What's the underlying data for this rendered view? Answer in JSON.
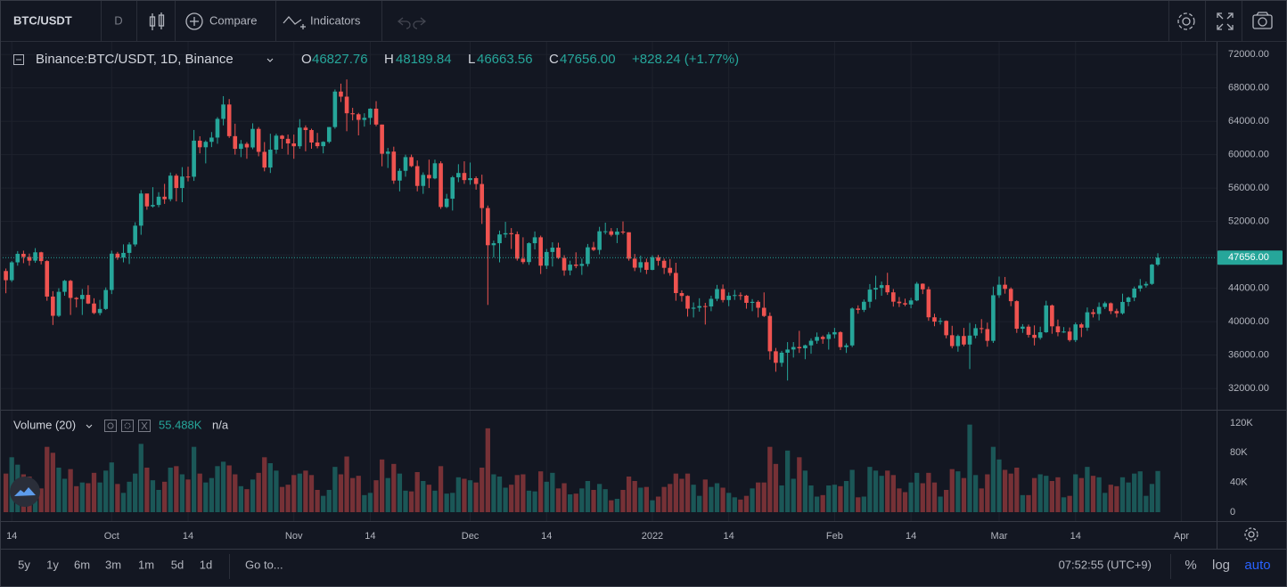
{
  "toolbar": {
    "symbol": "BTC/USDT",
    "interval": "D",
    "compare": "Compare",
    "indicators": "Indicators"
  },
  "legend": {
    "title": "Binance:BTC/USDT, 1D, Binance",
    "items": [
      {
        "label": "O",
        "value": "46827.76"
      },
      {
        "label": "H",
        "value": "48189.84"
      },
      {
        "label": "L",
        "value": "46663.56"
      },
      {
        "label": "C",
        "value": "47656.00"
      }
    ],
    "change": "+828.24 (+1.77%)"
  },
  "chart_data": [
    {
      "type": "candlestick",
      "up_color": "#26a69a",
      "down_color": "#ef5350",
      "grid": true,
      "xlim": [
        -1,
        206
      ],
      "xticks": [
        {
          "value": 1,
          "label": "14"
        },
        {
          "value": 18,
          "label": "Oct"
        },
        {
          "value": 31,
          "label": "14"
        },
        {
          "value": 49,
          "label": "Nov"
        },
        {
          "value": 62,
          "label": "14"
        },
        {
          "value": 79,
          "label": "Dec"
        },
        {
          "value": 92,
          "label": "14"
        },
        {
          "value": 110,
          "label": "2022"
        },
        {
          "value": 123,
          "label": "14"
        },
        {
          "value": 141,
          "label": "Feb"
        },
        {
          "value": 154,
          "label": "14"
        },
        {
          "value": 169,
          "label": "Mar"
        },
        {
          "value": 182,
          "label": "14"
        },
        {
          "value": 200,
          "label": "Apr"
        }
      ],
      "ylim": [
        29450,
        73500
      ],
      "yticks": [
        {
          "value": 32000,
          "label": "32000.00"
        },
        {
          "value": 36000,
          "label": "36000.00"
        },
        {
          "value": 40000,
          "label": "40000.00"
        },
        {
          "value": 44000,
          "label": "44000.00"
        },
        {
          "value": 48000,
          "label": "48000.00"
        },
        {
          "value": 52000,
          "label": "52000.00"
        },
        {
          "value": 56000,
          "label": "56000.00"
        },
        {
          "value": 60000,
          "label": "60000.00"
        },
        {
          "value": 64000,
          "label": "64000.00"
        },
        {
          "value": 68000,
          "label": "68000.00"
        },
        {
          "value": 72000,
          "label": "72000.00"
        }
      ],
      "last_price": {
        "value": 47656,
        "label": "47656.00"
      },
      "open": [
        46060,
        44960,
        47100,
        48120,
        47750,
        47300,
        48300,
        47250,
        43000,
        40700,
        43570,
        44890,
        42840,
        42700,
        43200,
        42170,
        41030,
        41520,
        43790,
        48140,
        47660,
        48230,
        49240,
        51490,
        55340,
        53800,
        53970,
        54960,
        54660,
        57480,
        56000,
        57370,
        57350,
        61670,
        60880,
        61530,
        62040,
        64280,
        66000,
        62210,
        60690,
        61290,
        60860,
        63080,
        60330,
        58450,
        60590,
        62270,
        61890,
        61340,
        61000,
        63230,
        62940,
        61450,
        61010,
        61530,
        63300,
        67550,
        66940,
        64950,
        64830,
        64160,
        64400,
        65500,
        63600,
        60100,
        60360,
        56890,
        58060,
        59700,
        58620,
        56250,
        57570,
        57150,
        58960,
        53730,
        54720,
        57280,
        57800,
        56950,
        57180,
        56480,
        53600,
        49150,
        49390,
        50440,
        50590,
        50470,
        47540,
        47130,
        49390,
        50100,
        46700,
        48340,
        48860,
        47630,
        46130,
        46830,
        46680,
        46910,
        48900,
        48590,
        50820,
        50820,
        50400,
        50780,
        50700,
        47540,
        46460,
        47120,
        46200,
        47720,
        47290,
        46440,
        45830,
        43420,
        43080,
        41550,
        41670,
        41860,
        41820,
        42730,
        43900,
        42590,
        43100,
        43180,
        43110,
        42250,
        42370,
        41660,
        40680,
        36450,
        35070,
        36280,
        36660,
        36960,
        36810,
        37160,
        37710,
        38170,
        37920,
        38470,
        38740,
        36950,
        37150,
        41570,
        41410,
        42380,
        43840,
        44040,
        44370,
        43510,
        42390,
        42210,
        42050,
        42540,
        44540,
        43870,
        40520,
        40000,
        40090,
        38370,
        37070,
        38280,
        37260,
        38330,
        39220,
        39110,
        37700,
        43160,
        44420,
        43920,
        42450,
        39150,
        39400,
        38420,
        38060,
        38730,
        41940,
        39440,
        38730,
        38810,
        37790,
        39670,
        39280,
        41120,
        40920,
        41760,
        42200,
        41260,
        41000,
        42360,
        42880,
        43960,
        44330,
        44520,
        46827.76
      ],
      "high": [
        46360,
        47250,
        48450,
        48500,
        48150,
        48800,
        48370,
        47350,
        43650,
        44000,
        45000,
        45000,
        42950,
        43900,
        44350,
        42800,
        42600,
        44100,
        48500,
        48350,
        49250,
        49500,
        51900,
        55750,
        55300,
        56100,
        55500,
        56500,
        57850,
        57700,
        58500,
        58550,
        62950,
        62200,
        61700,
        62700,
        64490,
        67000,
        66650,
        63700,
        61750,
        61500,
        63750,
        63300,
        61500,
        62500,
        62500,
        62350,
        62400,
        62400,
        64250,
        63500,
        63100,
        62600,
        61600,
        63300,
        67800,
        68500,
        69000,
        65600,
        65000,
        64950,
        65550,
        66400,
        63600,
        60800,
        60950,
        58350,
        60000,
        60000,
        59300,
        57870,
        59400,
        59400,
        59200,
        55300,
        57450,
        58850,
        59200,
        59050,
        57400,
        57600,
        53900,
        49700,
        50900,
        51950,
        51200,
        50800,
        50100,
        49500,
        50800,
        50300,
        48700,
        49500,
        49450,
        47950,
        47300,
        48300,
        47550,
        49300,
        49550,
        51350,
        51850,
        51200,
        51200,
        52000,
        50700,
        48100,
        47900,
        47550,
        47950,
        47990,
        47550,
        47500,
        47050,
        43750,
        43150,
        42300,
        42800,
        42250,
        43100,
        44400,
        44450,
        43500,
        43800,
        43500,
        43200,
        42700,
        42550,
        43500,
        41100,
        36850,
        36500,
        37550,
        37550,
        38900,
        37250,
        38000,
        38700,
        38350,
        38750,
        39250,
        38850,
        37400,
        41700,
        41950,
        42650,
        44500,
        45500,
        44800,
        45850,
        43900,
        42950,
        42750,
        42850,
        44750,
        44580,
        44200,
        40950,
        40450,
        40150,
        39500,
        38450,
        39250,
        39850,
        39700,
        40300,
        39880,
        44200,
        45400,
        45350,
        44100,
        42550,
        39700,
        39650,
        39550,
        39400,
        42500,
        42050,
        40250,
        39350,
        39300,
        39900,
        39850,
        41700,
        41500,
        42300,
        42400,
        42300,
        41550,
        43350,
        43000,
        44200,
        45100,
        44800,
        46900,
        48189.84
      ],
      "low": [
        43400,
        44750,
        46700,
        47000,
        46700,
        47050,
        46850,
        42500,
        39600,
        40550,
        43100,
        40800,
        41700,
        40800,
        42100,
        40900,
        40750,
        41400,
        43300,
        47400,
        47100,
        46900,
        49000,
        50400,
        53400,
        53650,
        53700,
        54100,
        54400,
        54400,
        54300,
        56800,
        56850,
        60150,
        58950,
        60900,
        61300,
        63500,
        62000,
        60000,
        59700,
        59500,
        60650,
        59800,
        58000,
        57800,
        60100,
        60700,
        60000,
        59500,
        60700,
        60400,
        60700,
        60750,
        60150,
        61350,
        63100,
        66300,
        62800,
        64100,
        62300,
        63350,
        63600,
        63400,
        58600,
        58400,
        56500,
        55600,
        57350,
        58500,
        55600,
        55300,
        56000,
        57050,
        53500,
        53600,
        53300,
        56700,
        56500,
        56400,
        55800,
        51700,
        42000,
        47700,
        47100,
        50050,
        48700,
        47300,
        46900,
        46800,
        48650,
        45700,
        46300,
        46600,
        47500,
        45500,
        45550,
        46400,
        45600,
        46600,
        48450,
        48050,
        50450,
        50200,
        49400,
        50450,
        47300,
        46050,
        45900,
        45700,
        46150,
        46700,
        45700,
        45500,
        42500,
        42400,
        40600,
        40500,
        41200,
        39650,
        41250,
        42450,
        42300,
        41850,
        42600,
        42600,
        41550,
        41250,
        40500,
        40550,
        35450,
        34000,
        34600,
        32950,
        35700,
        36250,
        35500,
        36150,
        37350,
        37350,
        36650,
        38000,
        36600,
        36250,
        36950,
        40950,
        41150,
        41650,
        42650,
        43100,
        43200,
        41800,
        41750,
        41850,
        41600,
        42450,
        43300,
        40100,
        39450,
        39650,
        38000,
        36800,
        36400,
        37050,
        34320,
        38000,
        38600,
        37000,
        37450,
        42850,
        43350,
        41850,
        38650,
        38650,
        38100,
        37150,
        37850,
        38650,
        38550,
        38250,
        38650,
        37600,
        37550,
        38150,
        38900,
        40500,
        40150,
        41500,
        40900,
        40500,
        40850,
        41850,
        42450,
        43600,
        44080,
        44400,
        46663.56
      ],
      "close": [
        44960,
        47100,
        48120,
        47750,
        47300,
        48300,
        47250,
        43000,
        40700,
        43570,
        44890,
        42840,
        42700,
        43200,
        42170,
        41030,
        41520,
        43790,
        48140,
        47660,
        48230,
        49240,
        51490,
        55340,
        53800,
        53970,
        54960,
        54660,
        57480,
        56000,
        57370,
        57350,
        61670,
        60880,
        61530,
        62040,
        64280,
        66000,
        62210,
        60690,
        61290,
        60860,
        63080,
        60330,
        58450,
        60590,
        62270,
        61890,
        61340,
        61000,
        63230,
        62940,
        61450,
        61010,
        61530,
        63300,
        67550,
        66940,
        64950,
        64830,
        64160,
        64400,
        65500,
        63600,
        60100,
        60360,
        56890,
        58060,
        59700,
        58620,
        56250,
        57570,
        57150,
        58960,
        53730,
        54720,
        57280,
        57800,
        56950,
        57180,
        56480,
        53600,
        49150,
        49390,
        50440,
        50590,
        50470,
        47540,
        47130,
        49390,
        50100,
        46700,
        48340,
        48860,
        47630,
        46130,
        46830,
        46680,
        46910,
        48900,
        48590,
        50820,
        50820,
        50400,
        50780,
        50700,
        47540,
        46460,
        47120,
        46200,
        47720,
        47290,
        46440,
        45830,
        43420,
        43080,
        41550,
        41670,
        41860,
        41820,
        42730,
        43900,
        42590,
        43100,
        43180,
        43110,
        42250,
        42370,
        41660,
        40680,
        36450,
        35070,
        36280,
        36660,
        36960,
        36810,
        37160,
        37710,
        38170,
        37920,
        38470,
        38740,
        36950,
        37150,
        41570,
        41410,
        42380,
        43840,
        44040,
        44370,
        43510,
        42390,
        42210,
        42050,
        42540,
        44540,
        43870,
        40520,
        40000,
        40090,
        38370,
        37070,
        38280,
        37260,
        38330,
        39220,
        39110,
        37700,
        43160,
        44420,
        43920,
        42450,
        39150,
        39400,
        38420,
        38060,
        38730,
        41940,
        39440,
        38730,
        38810,
        37790,
        39670,
        39280,
        41120,
        40920,
        41760,
        42200,
        41260,
        41000,
        42360,
        42880,
        43960,
        44330,
        44520,
        46827.76,
        47656
      ]
    },
    {
      "type": "bar",
      "title": "Volume (20)",
      "last_value": "55.488K",
      "ma_value": "n/a",
      "up_color": "#26a69a",
      "down_color": "#ef5350",
      "grid": false,
      "ylim": [
        -12000,
        136800
      ],
      "yticks": [
        {
          "value": 0,
          "label": "0"
        },
        {
          "value": 40000,
          "label": "40K"
        },
        {
          "value": 80000,
          "label": "80K"
        },
        {
          "value": 120000,
          "label": "120K"
        }
      ],
      "values": [
        52000,
        74000,
        64000,
        51000,
        48000,
        30000,
        32000,
        88000,
        80000,
        60000,
        45000,
        58000,
        35000,
        40000,
        39000,
        53000,
        40000,
        56000,
        67000,
        38000,
        26000,
        41000,
        52000,
        92000,
        60000,
        43000,
        30000,
        41000,
        60000,
        62000,
        51000,
        44000,
        88000,
        52000,
        40000,
        46000,
        62000,
        68000,
        63000,
        51000,
        35000,
        31000,
        44000,
        53000,
        74000,
        66000,
        56000,
        34000,
        37000,
        50000,
        52000,
        56000,
        50000,
        30000,
        22000,
        30000,
        61000,
        51000,
        75000,
        46000,
        49000,
        23000,
        26000,
        43000,
        71000,
        46000,
        65000,
        52000,
        29000,
        28000,
        54000,
        42000,
        37000,
        29000,
        62000,
        25000,
        26000,
        47000,
        45000,
        43000,
        40000,
        60000,
        113000,
        51000,
        48000,
        33000,
        37000,
        50000,
        51000,
        29000,
        28000,
        55000,
        41000,
        53000,
        32000,
        39000,
        24000,
        25000,
        32000,
        42000,
        30000,
        38000,
        31000,
        16000,
        18000,
        30000,
        48000,
        42000,
        33000,
        34000,
        16000,
        21000,
        34000,
        38000,
        52000,
        45000,
        52000,
        37000,
        22000,
        44000,
        34000,
        39000,
        33000,
        26000,
        20000,
        17000,
        22000,
        32000,
        40000,
        40000,
        88000,
        65000,
        36000,
        83000,
        45000,
        74000,
        56000,
        36000,
        21000,
        23000,
        36000,
        37000,
        35000,
        42000,
        57000,
        20000,
        21000,
        61000,
        56000,
        49000,
        56000,
        50000,
        32000,
        27000,
        40000,
        53000,
        39000,
        53000,
        40000,
        21000,
        30000,
        58000,
        55000,
        46000,
        118000,
        50000,
        32000,
        51000,
        88000,
        71000,
        57000,
        52000,
        60000,
        23000,
        23000,
        46000,
        51000,
        49000,
        42000,
        47000,
        20000,
        22000,
        51000,
        46000,
        61000,
        49000,
        47000,
        26000,
        37000,
        35000,
        47000,
        40000,
        52000,
        55000,
        22000,
        38000,
        55488
      ]
    }
  ],
  "bottom_bar": {
    "ranges": [
      "5y",
      "1y",
      "6m",
      "3m",
      "1m",
      "5d",
      "1d"
    ],
    "goto": "Go to...",
    "clock": "07:52:55 (UTC+9)",
    "percent": "%",
    "log": "log",
    "auto": "auto"
  }
}
